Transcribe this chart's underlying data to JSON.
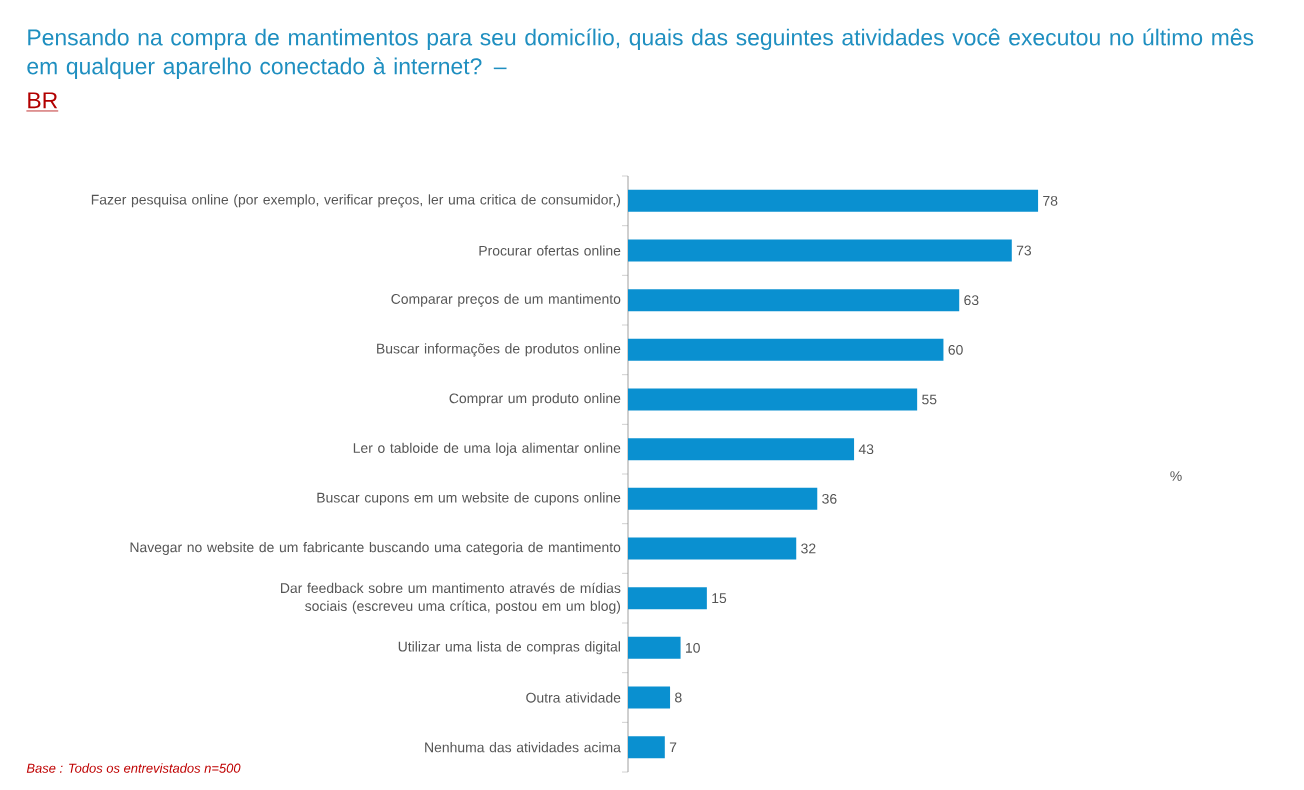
{
  "chart_data": {
    "type": "bar",
    "orientation": "horizontal",
    "title": "Pensando na compra de mantimentos para seu domicílio, quais das seguintes atividades você executou no último mês em qualquer aparelho conectado à internet? –",
    "subtitle": "BR",
    "categories": [
      "Fazer pesquisa online (por exemplo, verificar preços, ler uma critica de consumidor,)",
      "Procurar ofertas online",
      "Comparar preços de um mantimento",
      "Buscar informações de produtos online",
      "Comprar um produto online",
      "Ler o tabloide de uma loja alimentar online",
      "Buscar cupons em um website de cupons online",
      "Navegar no website de um fabricante buscando uma categoria de mantimento",
      "Dar feedback sobre um mantimento através de mídias sociais (escreveu uma crítica, postou em um blog)",
      "Utilizar uma lista de compras digital",
      "Outra atividade",
      "Nenhuma das atividades acima"
    ],
    "values": [
      78,
      73,
      63,
      60,
      55,
      43,
      36,
      32,
      15,
      10,
      8,
      7
    ],
    "color": "#0a90d0",
    "data_labels": true,
    "annotations": [
      "%",
      "Base : Todos os entrevistados n=500"
    ]
  }
}
